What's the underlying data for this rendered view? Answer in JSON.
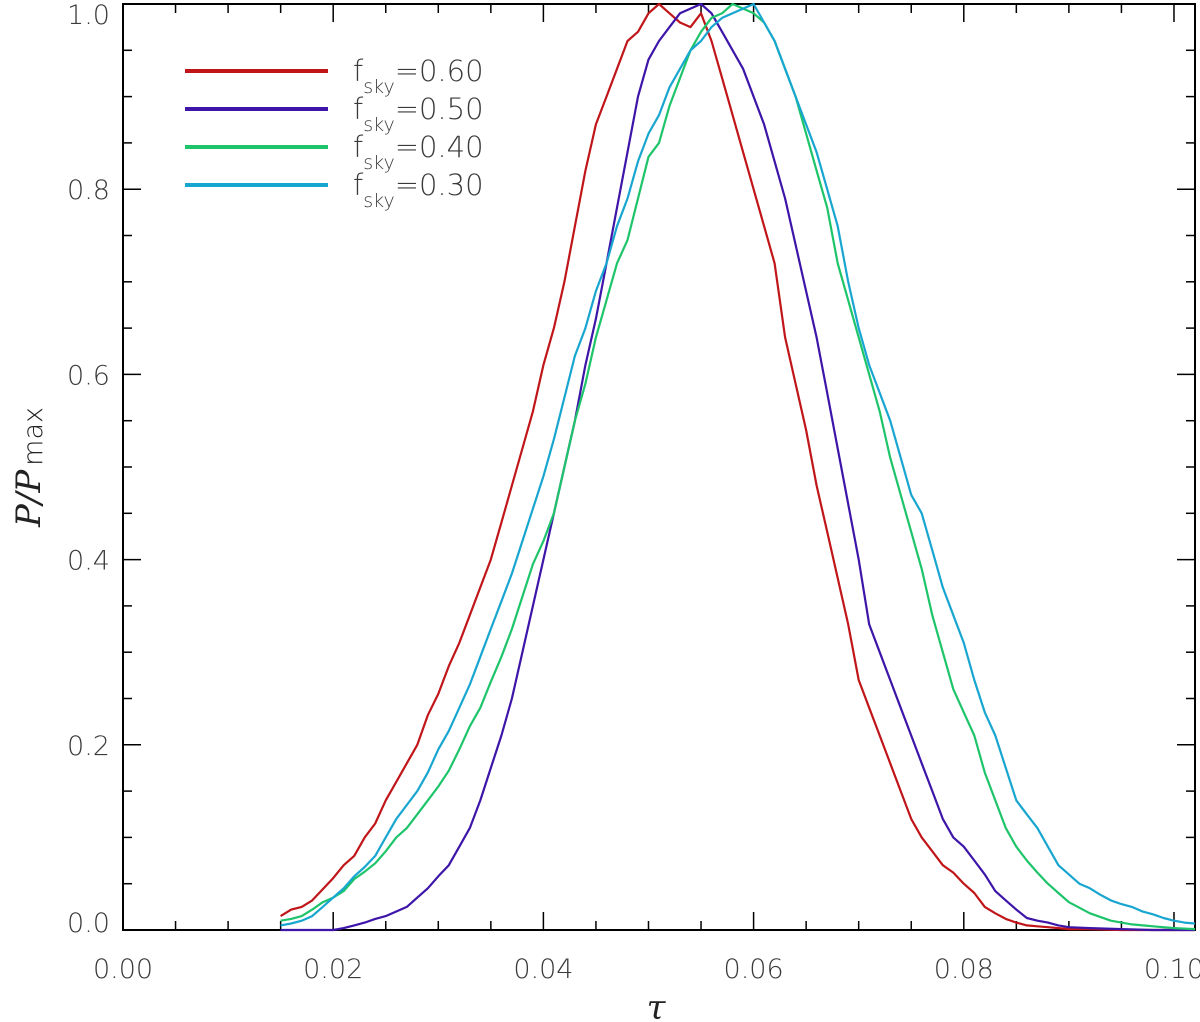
{
  "chart_data": {
    "type": "line",
    "xlabel": "τ",
    "ylabel": "P/P",
    "ylabel_sub": "max",
    "xlim": [
      0.0,
      0.102
    ],
    "ylim": [
      0.0,
      1.0
    ],
    "x_ticks": [
      "0.00",
      "0.02",
      "0.04",
      "0.06",
      "0.08",
      "0.10"
    ],
    "y_ticks": [
      "0.0",
      "0.2",
      "0.4",
      "0.6",
      "0.8",
      "1.0"
    ],
    "grid": false,
    "legend_position": "top-left",
    "series": [
      {
        "name": "fsky=0.60",
        "legend_base": "f",
        "legend_sub": "sky",
        "legend_value": "=0.60",
        "color": "#c0161a",
        "x": [
          0.015,
          0.016,
          0.017,
          0.018,
          0.019,
          0.02,
          0.021,
          0.022,
          0.023,
          0.024,
          0.025,
          0.026,
          0.027,
          0.028,
          0.029,
          0.03,
          0.031,
          0.032,
          0.033,
          0.034,
          0.035,
          0.036,
          0.037,
          0.038,
          0.039,
          0.04,
          0.041,
          0.042,
          0.043,
          0.044,
          0.045,
          0.046,
          0.047,
          0.048,
          0.049,
          0.05,
          0.051,
          0.052,
          0.053,
          0.054,
          0.055,
          0.056,
          0.057,
          0.058,
          0.059,
          0.06,
          0.061,
          0.062,
          0.063,
          0.064,
          0.065,
          0.066,
          0.067,
          0.068,
          0.069,
          0.07,
          0.071,
          0.072,
          0.073,
          0.074,
          0.075,
          0.076,
          0.077,
          0.078,
          0.079,
          0.08,
          0.081,
          0.082,
          0.083,
          0.084,
          0.085,
          0.086,
          0.087,
          0.088,
          0.089,
          0.09,
          0.092,
          0.095,
          0.098,
          0.102
        ],
        "y": [
          0.015,
          0.022,
          0.025,
          0.032,
          0.044,
          0.056,
          0.07,
          0.08,
          0.1,
          0.115,
          0.14,
          0.16,
          0.18,
          0.2,
          0.232,
          0.255,
          0.285,
          0.31,
          0.34,
          0.37,
          0.4,
          0.44,
          0.48,
          0.52,
          0.56,
          0.61,
          0.65,
          0.7,
          0.76,
          0.82,
          0.87,
          0.9,
          0.93,
          0.96,
          0.97,
          0.99,
          1.0,
          0.99,
          0.98,
          0.975,
          0.99,
          0.96,
          0.92,
          0.88,
          0.84,
          0.8,
          0.76,
          0.72,
          0.64,
          0.59,
          0.54,
          0.48,
          0.43,
          0.38,
          0.33,
          0.27,
          0.24,
          0.21,
          0.18,
          0.15,
          0.12,
          0.1,
          0.085,
          0.07,
          0.062,
          0.05,
          0.04,
          0.025,
          0.018,
          0.012,
          0.008,
          0.005,
          0.004,
          0.003,
          0.002,
          0.001,
          0.001,
          0.0,
          0.0,
          0.0
        ]
      },
      {
        "name": "fsky=0.50",
        "legend_base": "f",
        "legend_sub": "sky",
        "legend_value": "=0.50",
        "color": "#3d15a8",
        "x": [
          0.015,
          0.018,
          0.02,
          0.021,
          0.022,
          0.023,
          0.024,
          0.025,
          0.026,
          0.027,
          0.028,
          0.029,
          0.03,
          0.031,
          0.032,
          0.033,
          0.034,
          0.035,
          0.036,
          0.037,
          0.038,
          0.039,
          0.04,
          0.041,
          0.042,
          0.043,
          0.044,
          0.045,
          0.046,
          0.047,
          0.048,
          0.049,
          0.05,
          0.051,
          0.052,
          0.053,
          0.054,
          0.055,
          0.056,
          0.057,
          0.058,
          0.059,
          0.06,
          0.061,
          0.062,
          0.063,
          0.064,
          0.065,
          0.066,
          0.067,
          0.068,
          0.069,
          0.07,
          0.071,
          0.072,
          0.073,
          0.074,
          0.075,
          0.076,
          0.077,
          0.078,
          0.079,
          0.08,
          0.081,
          0.082,
          0.083,
          0.084,
          0.085,
          0.086,
          0.087,
          0.088,
          0.089,
          0.09,
          0.092,
          0.095,
          0.098,
          0.102
        ],
        "y": [
          0.0,
          0.0,
          0.0,
          0.002,
          0.005,
          0.008,
          0.012,
          0.015,
          0.02,
          0.025,
          0.035,
          0.045,
          0.058,
          0.07,
          0.09,
          0.11,
          0.14,
          0.175,
          0.21,
          0.25,
          0.3,
          0.35,
          0.4,
          0.45,
          0.5,
          0.55,
          0.61,
          0.66,
          0.72,
          0.78,
          0.84,
          0.9,
          0.94,
          0.96,
          0.975,
          0.99,
          0.995,
          1.0,
          0.99,
          0.97,
          0.95,
          0.93,
          0.9,
          0.87,
          0.83,
          0.79,
          0.74,
          0.69,
          0.64,
          0.58,
          0.52,
          0.46,
          0.4,
          0.33,
          0.3,
          0.27,
          0.24,
          0.21,
          0.18,
          0.15,
          0.12,
          0.1,
          0.09,
          0.075,
          0.06,
          0.042,
          0.032,
          0.022,
          0.013,
          0.01,
          0.008,
          0.005,
          0.003,
          0.002,
          0.001,
          0.0,
          0.0
        ]
      },
      {
        "name": "fsky=0.40",
        "legend_base": "f",
        "legend_sub": "sky",
        "legend_value": "=0.40",
        "color": "#1ec46a",
        "x": [
          0.015,
          0.016,
          0.017,
          0.018,
          0.019,
          0.02,
          0.021,
          0.022,
          0.023,
          0.024,
          0.025,
          0.026,
          0.027,
          0.028,
          0.029,
          0.03,
          0.031,
          0.032,
          0.033,
          0.034,
          0.035,
          0.036,
          0.037,
          0.038,
          0.039,
          0.04,
          0.041,
          0.042,
          0.043,
          0.044,
          0.045,
          0.046,
          0.047,
          0.048,
          0.049,
          0.05,
          0.051,
          0.052,
          0.053,
          0.054,
          0.055,
          0.056,
          0.057,
          0.058,
          0.059,
          0.06,
          0.061,
          0.062,
          0.063,
          0.064,
          0.065,
          0.066,
          0.067,
          0.068,
          0.069,
          0.07,
          0.071,
          0.072,
          0.073,
          0.074,
          0.075,
          0.076,
          0.077,
          0.078,
          0.079,
          0.08,
          0.081,
          0.082,
          0.083,
          0.084,
          0.085,
          0.086,
          0.087,
          0.088,
          0.089,
          0.09,
          0.092,
          0.094,
          0.096,
          0.098,
          0.1,
          0.102
        ],
        "y": [
          0.01,
          0.012,
          0.015,
          0.022,
          0.03,
          0.035,
          0.042,
          0.055,
          0.063,
          0.072,
          0.085,
          0.1,
          0.11,
          0.125,
          0.14,
          0.155,
          0.172,
          0.195,
          0.22,
          0.24,
          0.268,
          0.295,
          0.325,
          0.36,
          0.395,
          0.42,
          0.45,
          0.5,
          0.55,
          0.59,
          0.64,
          0.68,
          0.72,
          0.745,
          0.79,
          0.835,
          0.85,
          0.89,
          0.92,
          0.95,
          0.97,
          0.985,
          0.99,
          1.0,
          0.995,
          0.99,
          0.98,
          0.96,
          0.93,
          0.9,
          0.86,
          0.82,
          0.78,
          0.72,
          0.68,
          0.64,
          0.6,
          0.56,
          0.51,
          0.47,
          0.43,
          0.39,
          0.34,
          0.3,
          0.26,
          0.235,
          0.21,
          0.17,
          0.14,
          0.11,
          0.09,
          0.075,
          0.062,
          0.05,
          0.04,
          0.03,
          0.018,
          0.01,
          0.006,
          0.004,
          0.002,
          0.001
        ]
      },
      {
        "name": "fsky=0.30",
        "legend_base": "f",
        "legend_sub": "sky",
        "legend_value": "=0.30",
        "color": "#18a6d0",
        "x": [
          0.015,
          0.016,
          0.017,
          0.018,
          0.019,
          0.02,
          0.021,
          0.022,
          0.023,
          0.024,
          0.025,
          0.026,
          0.027,
          0.028,
          0.029,
          0.03,
          0.031,
          0.032,
          0.033,
          0.034,
          0.035,
          0.036,
          0.037,
          0.038,
          0.039,
          0.04,
          0.041,
          0.042,
          0.043,
          0.044,
          0.045,
          0.046,
          0.047,
          0.048,
          0.049,
          0.05,
          0.051,
          0.052,
          0.053,
          0.054,
          0.055,
          0.056,
          0.057,
          0.058,
          0.059,
          0.06,
          0.061,
          0.062,
          0.063,
          0.064,
          0.065,
          0.066,
          0.067,
          0.068,
          0.069,
          0.07,
          0.071,
          0.072,
          0.073,
          0.074,
          0.075,
          0.076,
          0.077,
          0.078,
          0.079,
          0.08,
          0.081,
          0.082,
          0.083,
          0.084,
          0.085,
          0.086,
          0.087,
          0.088,
          0.089,
          0.09,
          0.091,
          0.092,
          0.093,
          0.094,
          0.095,
          0.096,
          0.097,
          0.098,
          0.099,
          0.1,
          0.101,
          0.102
        ],
        "y": [
          0.005,
          0.007,
          0.01,
          0.015,
          0.025,
          0.035,
          0.045,
          0.058,
          0.068,
          0.08,
          0.1,
          0.12,
          0.135,
          0.15,
          0.17,
          0.195,
          0.215,
          0.24,
          0.265,
          0.295,
          0.325,
          0.355,
          0.385,
          0.42,
          0.455,
          0.49,
          0.53,
          0.575,
          0.62,
          0.65,
          0.69,
          0.72,
          0.76,
          0.79,
          0.83,
          0.86,
          0.88,
          0.91,
          0.93,
          0.95,
          0.96,
          0.975,
          0.985,
          0.99,
          0.995,
          1.0,
          0.98,
          0.96,
          0.93,
          0.9,
          0.87,
          0.84,
          0.8,
          0.76,
          0.7,
          0.65,
          0.61,
          0.58,
          0.55,
          0.51,
          0.47,
          0.45,
          0.41,
          0.37,
          0.34,
          0.31,
          0.27,
          0.235,
          0.21,
          0.175,
          0.14,
          0.125,
          0.11,
          0.09,
          0.07,
          0.06,
          0.05,
          0.045,
          0.038,
          0.032,
          0.028,
          0.025,
          0.02,
          0.017,
          0.013,
          0.01,
          0.008,
          0.007
        ]
      }
    ]
  }
}
